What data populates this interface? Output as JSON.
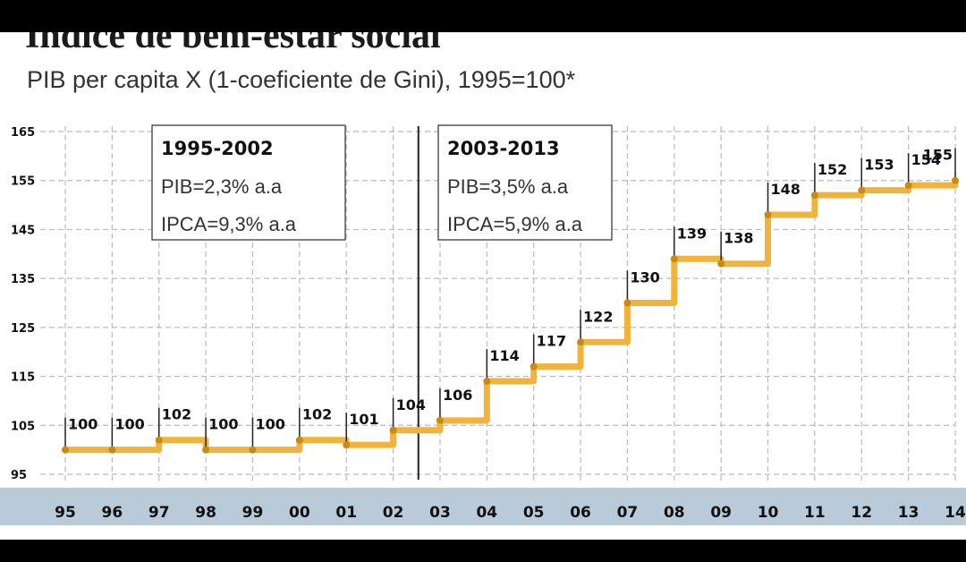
{
  "chart_data": {
    "type": "line",
    "title": "Índice de bem-estar social",
    "subtitle": "PIB per capita X (1-coeficiente de Gini), 1995=100*",
    "categories": [
      "95",
      "96",
      "97",
      "98",
      "99",
      "00",
      "01",
      "02",
      "03",
      "04",
      "05",
      "06",
      "07",
      "08",
      "09",
      "10",
      "11",
      "12",
      "13",
      "14"
    ],
    "series": [
      {
        "values": [
          100,
          100,
          102,
          100,
          100,
          102,
          101,
          104,
          106,
          114,
          117,
          122,
          130,
          139,
          138,
          148,
          152,
          153,
          154,
          155
        ]
      }
    ],
    "y_ticks": [
      "165",
      "155",
      "145",
      "135",
      "125",
      "115",
      "105",
      "95"
    ],
    "ylim": [
      95,
      165
    ],
    "grid": true,
    "line_style": "step",
    "series_color": "#f0b43c",
    "annotations": [
      {
        "heading": "1995-2002",
        "lines": [
          "PIB=2,3% a.a",
          "IPCA=9,3% a.a"
        ]
      },
      {
        "heading": "2003-2013",
        "lines": [
          "PIB=3,5% a.a",
          "IPCA=5,9% a.a"
        ]
      }
    ]
  }
}
